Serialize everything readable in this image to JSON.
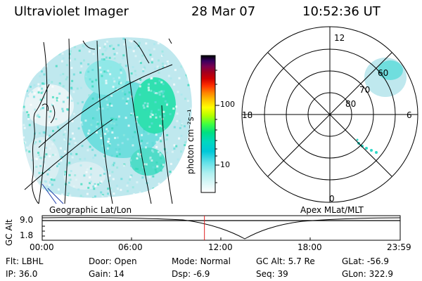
{
  "header": {
    "title": "Ultraviolet Imager",
    "date": "28 Mar 07",
    "time": "10:52:36 UT"
  },
  "panels": {
    "left_label": "Geographic Lat/Lon",
    "right_label": "Apex MLat/MLT"
  },
  "colorbar": {
    "unit_label": "photon cm⁻²s⁻¹",
    "ticks": [
      "100",
      "10"
    ],
    "colors": [
      "#000000",
      "#2a0050",
      "#5a007a",
      "#7a0050",
      "#a00020",
      "#d00000",
      "#ff3000",
      "#ff8000",
      "#ffc000",
      "#ffff00",
      "#b0ff00",
      "#40ff40",
      "#00e080",
      "#00d8c0",
      "#00c8d8",
      "#60e0e8",
      "#b0f0f0",
      "#e0f8f8",
      "#ffffff"
    ]
  },
  "polar": {
    "mlt_labels": {
      "top": "12",
      "left": "18",
      "right": "6",
      "bottom": "0"
    },
    "lat_labels": [
      "60",
      "70",
      "80"
    ]
  },
  "timeline": {
    "ylabel": "GC Alt",
    "yticks": [
      "9.0",
      "1.8"
    ],
    "xticks": [
      "00:00",
      "06:00",
      "12:00",
      "18:00",
      "23:59"
    ],
    "marker_hours": 10.876
  },
  "footer": {
    "row1": [
      {
        "label": "Flt:",
        "value": "LBHL"
      },
      {
        "label": "Door:",
        "value": "Open"
      },
      {
        "label": "Mode:",
        "value": "Normal"
      },
      {
        "label": "GC Alt:",
        "value": "5.7 Re"
      },
      {
        "label": "GLat:",
        "value": "-56.9"
      }
    ],
    "row2": [
      {
        "label": "IP:",
        "value": "36.0"
      },
      {
        "label": "Gain:",
        "value": "14"
      },
      {
        "label": "Dsp:",
        "value": "-6.9"
      },
      {
        "label": "Seq:",
        "value": "39"
      },
      {
        "label": "GLon:",
        "value": "322.9"
      }
    ]
  }
}
